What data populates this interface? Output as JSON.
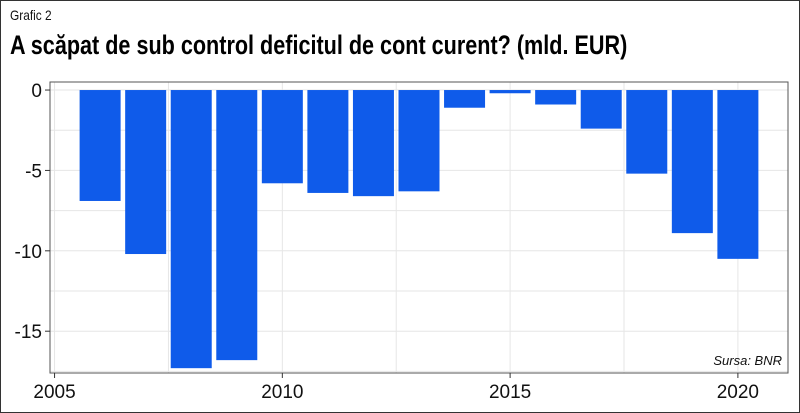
{
  "header": {
    "label": "Grafic 2",
    "title": "A scăpat de sub control deficitul de cont curent? (mld. EUR)"
  },
  "source": "Sursa: BNR",
  "colors": {
    "bar": "#0F5BEA",
    "grid": "#E6E6E6",
    "panel_border": "#555555"
  },
  "chart_data": {
    "type": "bar",
    "title": "A scăpat de sub control deficitul de cont curent? (mld. EUR)",
    "xlabel": "",
    "ylabel": "",
    "categories": [
      2006,
      2007,
      2008,
      2009,
      2010,
      2011,
      2012,
      2013,
      2014,
      2015,
      2016,
      2017,
      2018,
      2019,
      2020
    ],
    "values": [
      -6.9,
      -10.2,
      -17.3,
      -16.8,
      -5.8,
      -6.4,
      -6.6,
      -6.3,
      -1.1,
      -0.2,
      -0.9,
      -2.4,
      -5.2,
      -8.9,
      -10.5
    ],
    "xlim": [
      2004.9,
      2021.1
    ],
    "ylim": [
      -17.6,
      0.5
    ],
    "xticks": [
      2005,
      2010,
      2015,
      2020
    ],
    "yticks": [
      0,
      -5,
      -10,
      -15
    ],
    "grid": true,
    "legend": "none"
  }
}
